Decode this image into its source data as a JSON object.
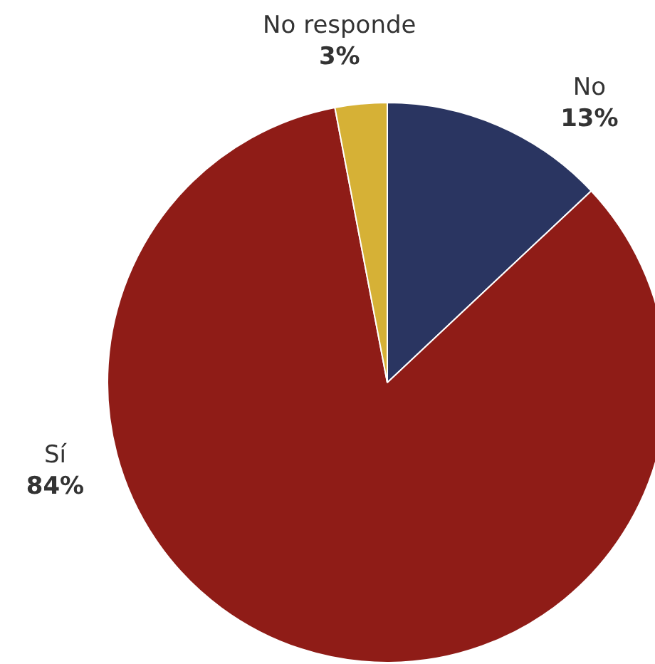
{
  "chart_data": {
    "type": "pie",
    "categories": [
      "No",
      "Sí",
      "No responde"
    ],
    "values": [
      13,
      84,
      3
    ],
    "colors": [
      "#2a3561",
      "#8f1c17",
      "#d6b136"
    ],
    "value_labels": [
      "13%",
      "84%",
      "3%"
    ],
    "legend": false
  }
}
